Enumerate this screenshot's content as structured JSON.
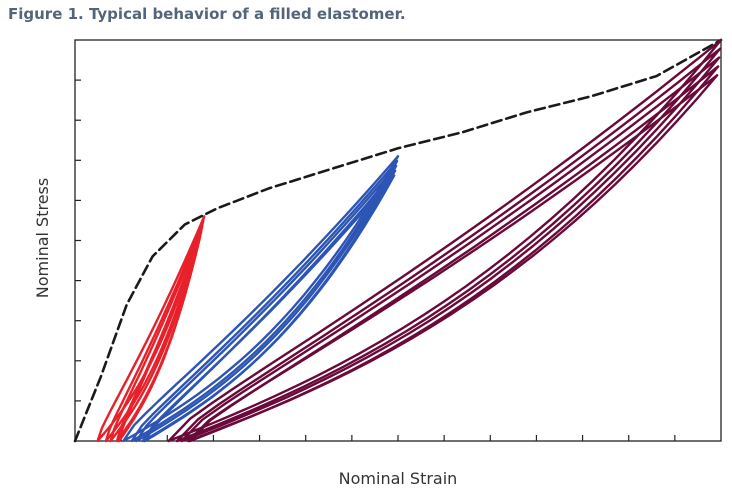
{
  "figure_title": "Figure 1. Typical behavior of a filled elastomer.",
  "chart_data": {
    "type": "line",
    "title": "Figure 1. Typical behavior of a filled elastomer.",
    "xlabel": "Nominal Strain",
    "ylabel": "Nominal Stress",
    "xlim": [
      0,
      100
    ],
    "ylim": [
      0,
      100
    ],
    "tick_labels_shown": false,
    "x_tick_count": 13,
    "y_tick_count": 9,
    "grid": false,
    "legend": "none",
    "series": [
      {
        "color": "#1a1a1a",
        "style": "dashed",
        "points": [
          [
            0,
            0
          ],
          [
            4,
            16
          ],
          [
            8,
            34
          ],
          [
            12,
            46
          ],
          [
            17,
            54
          ],
          [
            22,
            58
          ],
          [
            30,
            63
          ],
          [
            40,
            68
          ],
          [
            50,
            73
          ],
          [
            60,
            77
          ],
          [
            70,
            82
          ],
          [
            80,
            86
          ],
          [
            90,
            91
          ],
          [
            100,
            100
          ]
        ]
      },
      {
        "color": "#e8202a",
        "style": "cyclic",
        "peak": [
          20,
          56
        ],
        "unloaded_strains": [
          3.5,
          4.5,
          5.5,
          6.5
        ],
        "cycles": 5
      },
      {
        "color": "#2d55b5",
        "style": "cyclic",
        "peak": [
          50,
          71
        ],
        "unloaded_strains": [
          7.5,
          8.5,
          9.5,
          10.5
        ],
        "cycles": 5
      },
      {
        "color": "#6a0a3a",
        "style": "cyclic",
        "peak": [
          100,
          100
        ],
        "unloaded_strains": [
          14.5,
          15.5,
          16.5,
          17.5
        ],
        "cycles": 5
      }
    ]
  }
}
